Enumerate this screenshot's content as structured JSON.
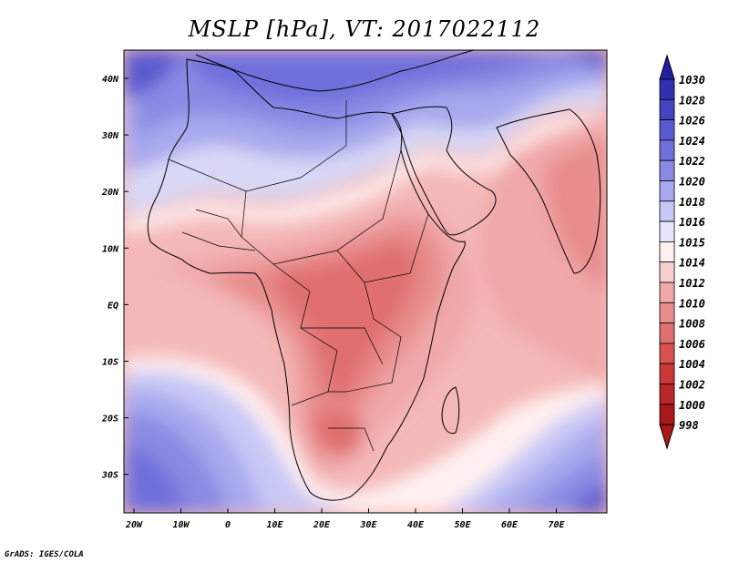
{
  "title": "MSLP [hPa], VT: 2017022112",
  "credit": "GrADS: IGES/COLA",
  "map": {
    "variable": "MSLP",
    "units": "hPa",
    "valid_time": "2017022112",
    "lon_range": [
      -25,
      80
    ],
    "lat_range": [
      -37,
      45
    ],
    "x_ticks": [
      "20W",
      "10W",
      "0",
      "10E",
      "20E",
      "30E",
      "40E",
      "50E",
      "60E",
      "70E"
    ],
    "y_ticks": [
      "40N",
      "30N",
      "20N",
      "10N",
      "EQ",
      "10S",
      "20S",
      "30S"
    ]
  },
  "colorbar": {
    "levels": [
      "1030",
      "1028",
      "1026",
      "1024",
      "1022",
      "1020",
      "1018",
      "1016",
      "1015",
      "1014",
      "1012",
      "1010",
      "1008",
      "1006",
      "1004",
      "1002",
      "1000",
      "998"
    ],
    "colors": [
      "#2020a0",
      "#3030b0",
      "#4444c0",
      "#5a5ad0",
      "#7070dc",
      "#8a8ae4",
      "#a8a8ee",
      "#c8c8f6",
      "#e6e6fc",
      "#fff0f0",
      "#f8d0d0",
      "#f0a8a8",
      "#e88c8c",
      "#e07070",
      "#d85050",
      "#cc3838",
      "#b82828",
      "#a81818"
    ]
  }
}
